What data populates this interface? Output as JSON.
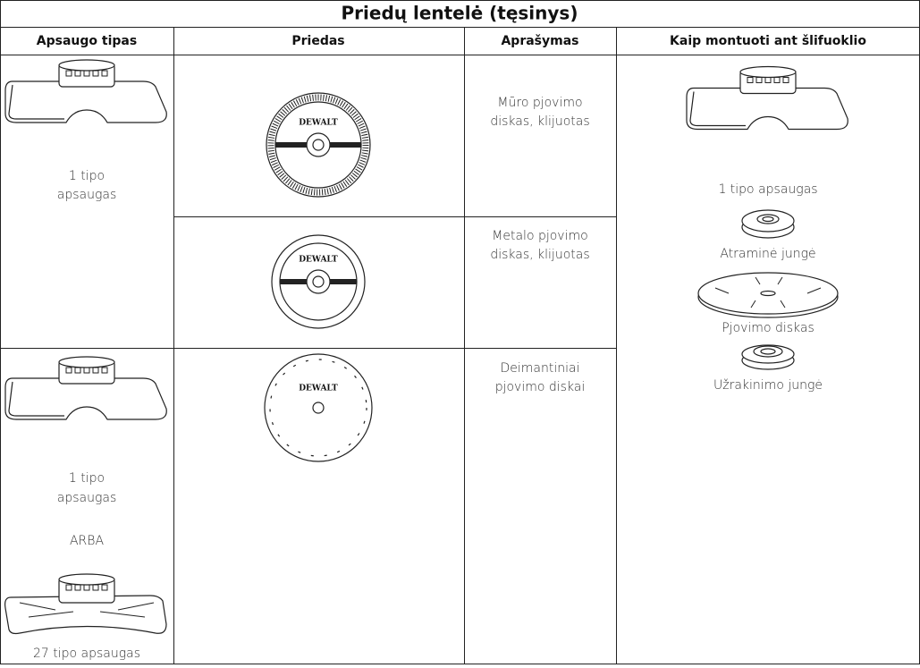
{
  "title": "Priedų lentelė (tęsinys)",
  "table": {
    "headers": [
      "Apsaugo tipas",
      "Priedas",
      "Aprašymas",
      "Kaip montuoti ant šlifuoklio"
    ],
    "guard_cells": [
      {
        "lines": [
          "1 tipo",
          "apsaugas"
        ]
      },
      {
        "lines": [
          "1 tipo",
          "apsaugas",
          "ARBA",
          "27 tipo apsaugas"
        ]
      }
    ],
    "accessories": [
      {
        "logo": "DEWALT",
        "description": [
          "Mūro pjovimo",
          "diskas, klijuotas"
        ]
      },
      {
        "logo": "DEWALT",
        "description": [
          "Metalo pjovimo",
          "diskas, klijuotas"
        ]
      },
      {
        "logo": "DEWALT",
        "description": [
          "Deimantiniai",
          "pjovimo diskai"
        ]
      }
    ],
    "mounting": [
      "1 tipo apsaugas",
      "Atraminė jungė",
      "Pjovimo diskas",
      "Užrakinimo jungė"
    ]
  }
}
